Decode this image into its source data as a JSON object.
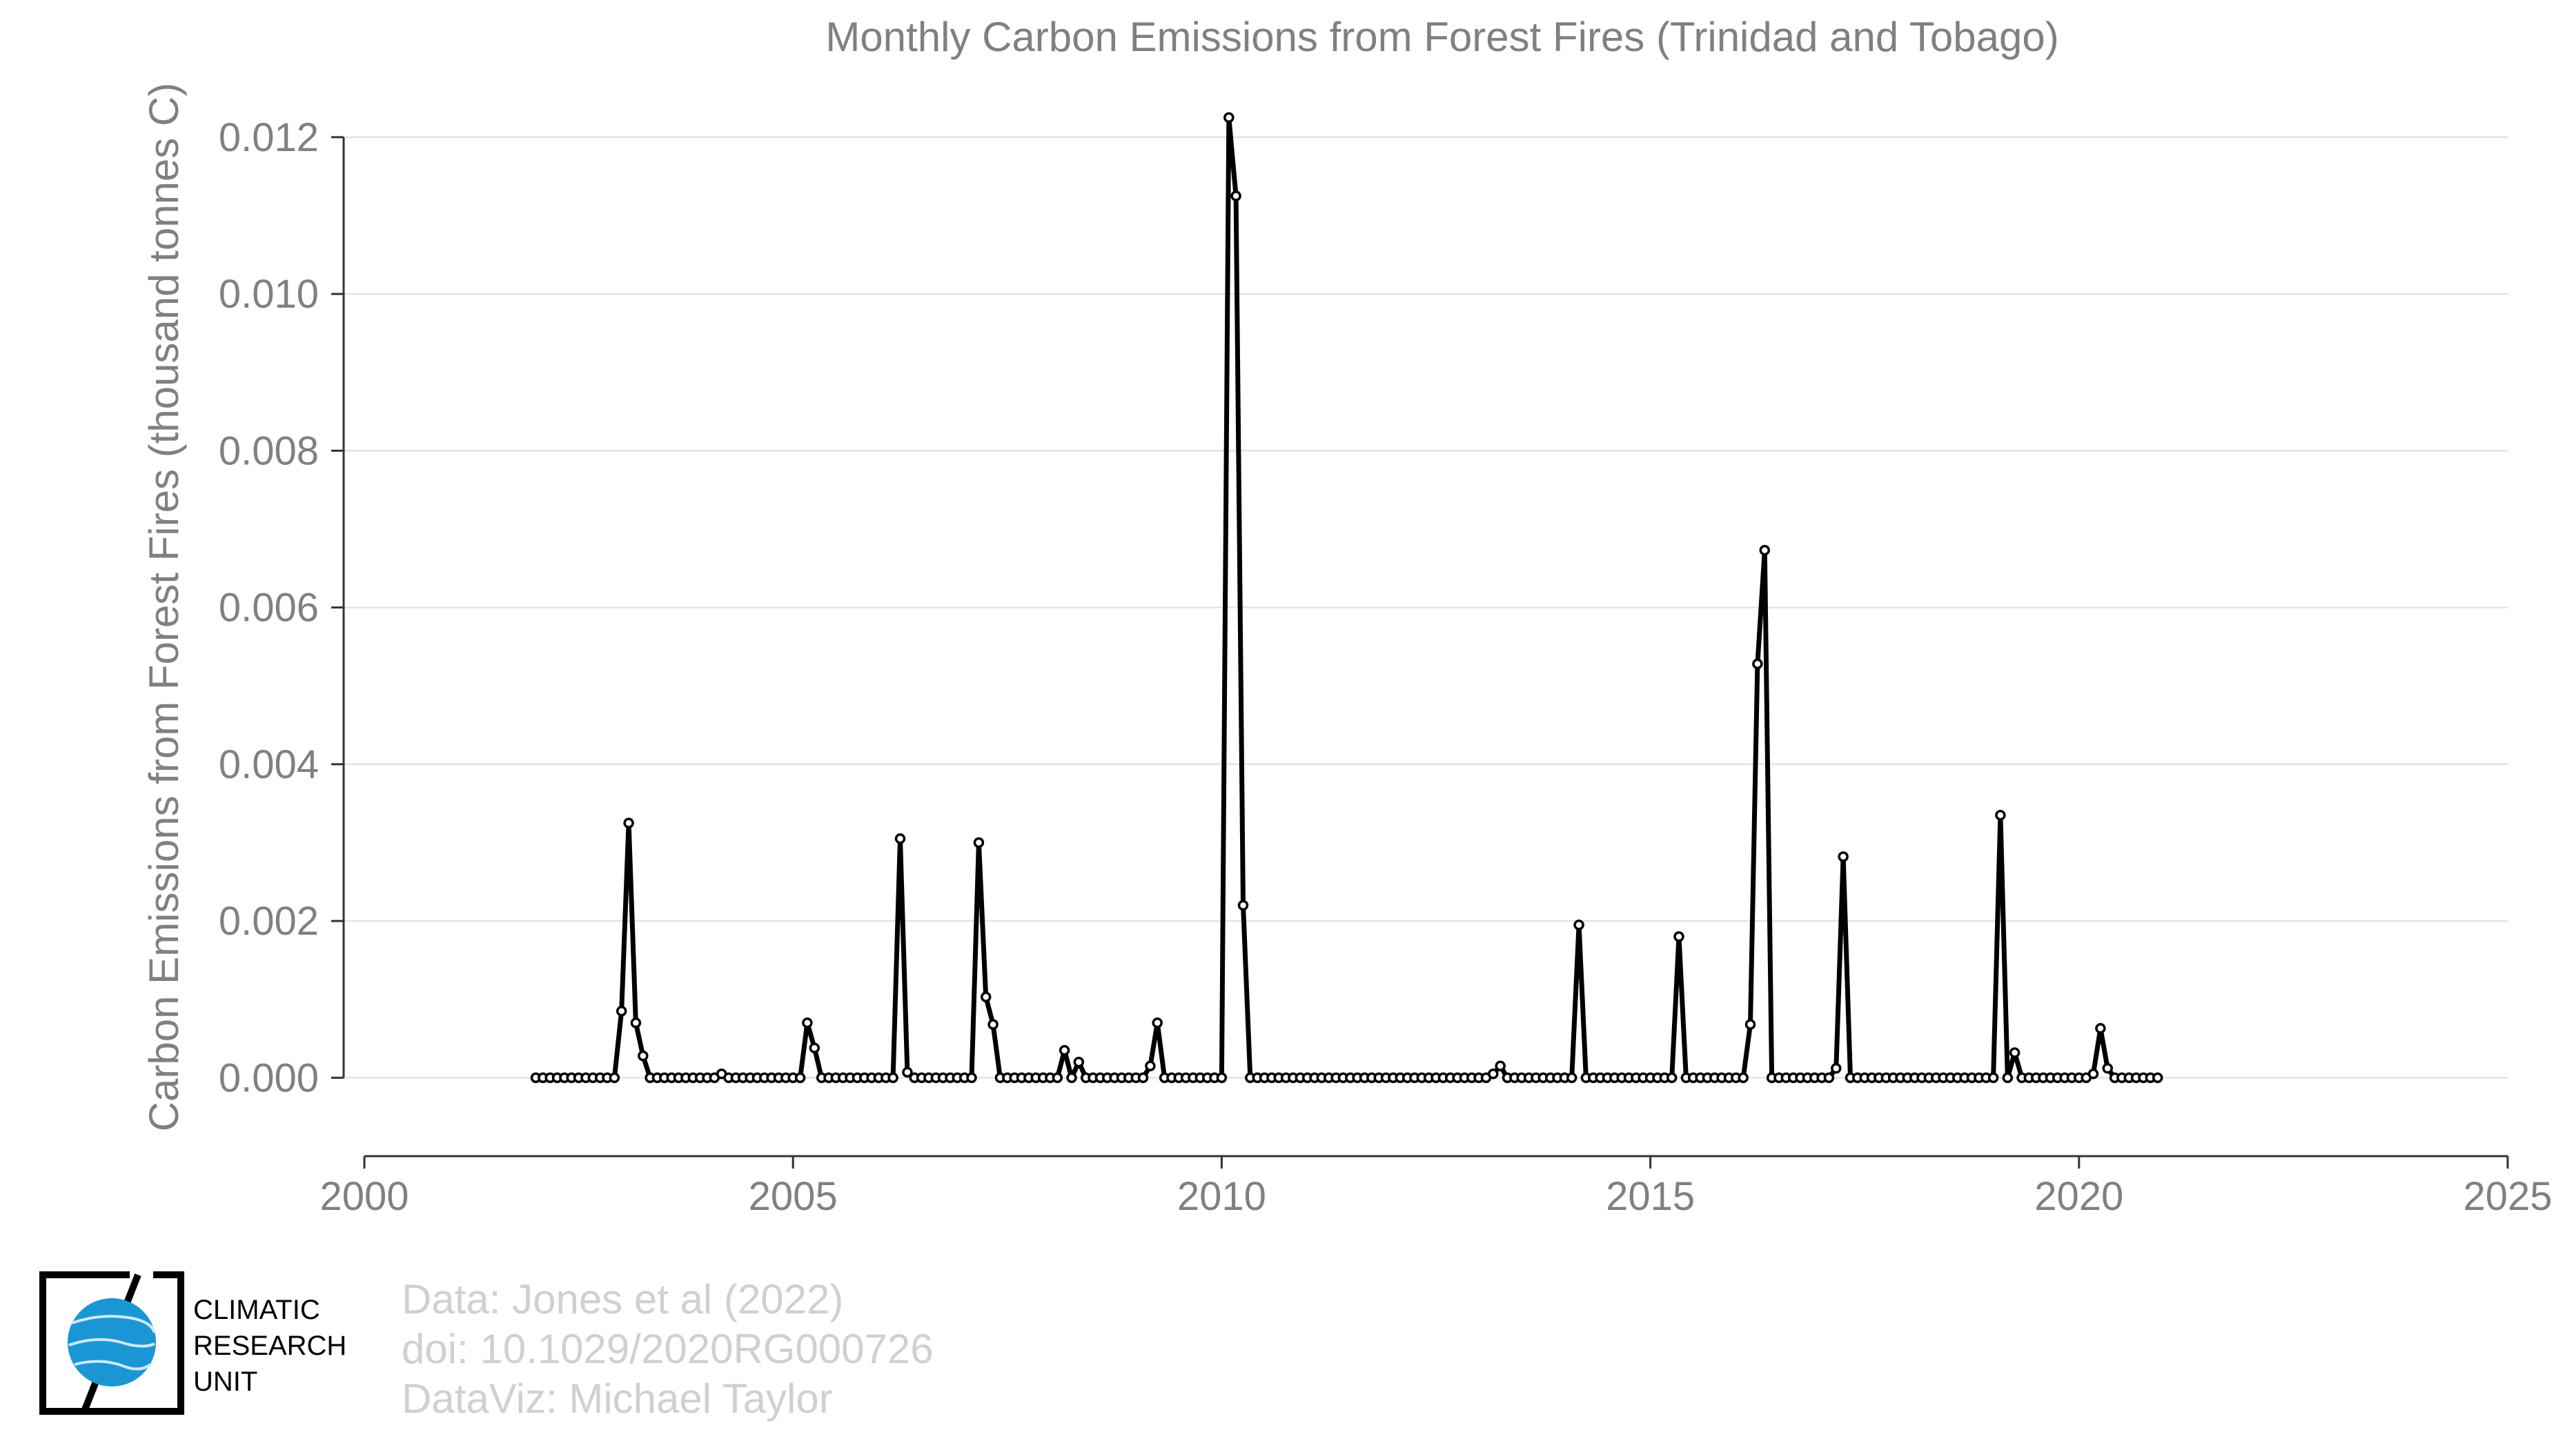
{
  "chart_data": {
    "type": "line",
    "title": "Monthly Carbon Emissions from Forest Fires (Trinidad and Tobago)",
    "xlabel": "",
    "ylabel": "Carbon Emissions from Forest Fires (thousand tonnes C)",
    "xlim": [
      2000,
      2025
    ],
    "ylim": [
      -0.001,
      0.0125
    ],
    "x_ticks": [
      2000,
      2005,
      2010,
      2015,
      2020,
      2025
    ],
    "y_ticks": [
      0.0,
      0.002,
      0.004,
      0.006,
      0.008,
      0.01,
      0.012
    ],
    "y_tick_labels": [
      "0.000",
      "0.002",
      "0.004",
      "0.006",
      "0.008",
      "0.010",
      "0.012"
    ],
    "x_tick_labels": [
      "2000",
      "2005",
      "2010",
      "2015",
      "2020",
      "2025"
    ],
    "grid": "horizontal",
    "x_start": "2002-01",
    "x_step": "1 month",
    "series": [
      {
        "values": [
          0,
          0,
          0,
          0,
          0,
          0,
          0,
          0,
          0,
          0,
          0,
          0,
          0.00085,
          0.00325,
          0.0007,
          0.00028,
          0,
          0,
          0,
          0,
          0,
          0,
          0,
          0,
          0,
          0,
          5e-05,
          0,
          0,
          0,
          0,
          0,
          0,
          0,
          0,
          0,
          0,
          0,
          0.0007,
          0.00038,
          0,
          0,
          0,
          0,
          0,
          0,
          0,
          0,
          0,
          0,
          0,
          0.00305,
          7e-05,
          0,
          0,
          0,
          0,
          0,
          0,
          0,
          0,
          0,
          0.003,
          0.00103,
          0.00068,
          0,
          0,
          0,
          0,
          0,
          0,
          0,
          0,
          0,
          0.00035,
          0,
          0.0002,
          0,
          0,
          0,
          0,
          0,
          0,
          0,
          0,
          0,
          0.00015,
          0.0007,
          0,
          0,
          0,
          0,
          0,
          0,
          0,
          0,
          0,
          0.01225,
          0.01125,
          0.0022,
          0,
          0,
          0,
          0,
          0,
          0,
          0,
          0,
          0,
          0,
          0,
          0,
          0,
          0,
          0,
          0,
          0,
          0,
          0,
          0,
          0,
          0,
          0,
          0,
          0,
          0,
          0,
          0,
          0,
          0,
          0,
          0,
          0,
          0,
          5e-05,
          0.00015,
          0,
          0,
          0,
          0,
          0,
          0,
          0,
          0,
          0,
          0,
          0.00195,
          0,
          0,
          0,
          0,
          0,
          0,
          0,
          0,
          0,
          0,
          0,
          0,
          0,
          0.0018,
          0,
          0,
          0,
          0,
          0,
          0,
          0,
          0,
          0,
          0.00068,
          0.00528,
          0.00673,
          0,
          0,
          0,
          0,
          0,
          0,
          0,
          0,
          0,
          0.00012,
          0.00282,
          0,
          0,
          0,
          0,
          0,
          0,
          0,
          0,
          0,
          0,
          0,
          0,
          0,
          0,
          0,
          0,
          0,
          0,
          0,
          0,
          0,
          0.00335,
          0,
          0.00032,
          0,
          0,
          0,
          0,
          0,
          0,
          0,
          0,
          0,
          0,
          5e-05,
          0.00063,
          0.00012,
          0,
          0,
          0,
          0,
          0,
          0,
          0
        ]
      }
    ]
  },
  "credits": {
    "line1": "Data: Jones et al (2022)",
    "line2": "doi: 10.1029/2020RG000726",
    "line3": "DataViz: Michael Taylor"
  },
  "logo": {
    "line1": "CLIMATIC",
    "line2": "RESEARCH",
    "line3": "UNIT",
    "globe_color": "#1a96d4"
  }
}
